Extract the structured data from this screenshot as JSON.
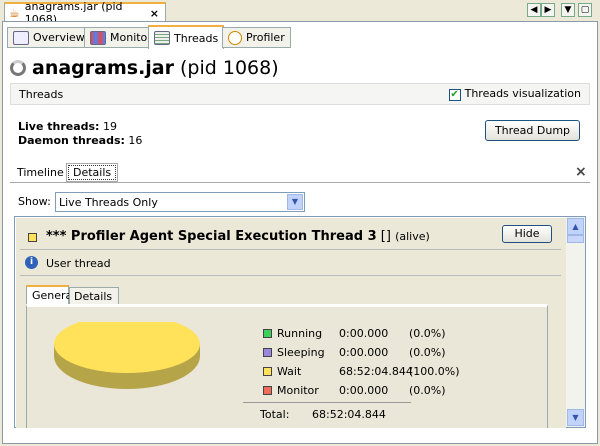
{
  "document_tab": {
    "title": "anagrams.jar (pid 1068)",
    "close": "×"
  },
  "window_controls": {
    "left": "◀",
    "right": "▶",
    "menu": "▼",
    "close": "×"
  },
  "tabs": [
    {
      "label": "Overview"
    },
    {
      "label": "Monitor"
    },
    {
      "label": "Threads"
    },
    {
      "label": "Profiler"
    }
  ],
  "page_title": {
    "app": "anagrams.jar",
    "pid": "(pid 1068)"
  },
  "threads_section": {
    "label": "Threads",
    "visualization_label": "Threads visualization",
    "visualization_checked": true
  },
  "stats": {
    "live_label": "Live threads:",
    "live_value": "19",
    "daemon_label": "Daemon threads:",
    "daemon_value": "16"
  },
  "thread_dump_button": "Thread Dump",
  "subtabs": [
    {
      "label": "Timeline"
    },
    {
      "label": "Details"
    }
  ],
  "close_x": "×",
  "show": {
    "label": "Show:",
    "value": "Live Threads Only"
  },
  "thread": {
    "name": "*** Profiler Agent Special Execution Thread 3",
    "brackets": "[]",
    "status": "(alive)",
    "hide": "Hide",
    "type": "User thread",
    "color": "#ffe15a"
  },
  "detail_tabs": [
    {
      "label": "General"
    },
    {
      "label": "Details"
    }
  ],
  "states": [
    {
      "name": "Running",
      "time": "0:00.000",
      "pct": "(0.0%)",
      "color": "#3ccf5a"
    },
    {
      "name": "Sleeping",
      "time": "0:00.000",
      "pct": "(0.0%)",
      "color": "#9988dd"
    },
    {
      "name": "Wait",
      "time": "68:52:04.844",
      "pct": "(100.0%)",
      "color": "#ffe15a"
    },
    {
      "name": "Monitor",
      "time": "0:00.000",
      "pct": "(0.0%)",
      "color": "#f26a5a"
    }
  ],
  "total": {
    "label": "Total:",
    "value": "68:52:04.844"
  }
}
